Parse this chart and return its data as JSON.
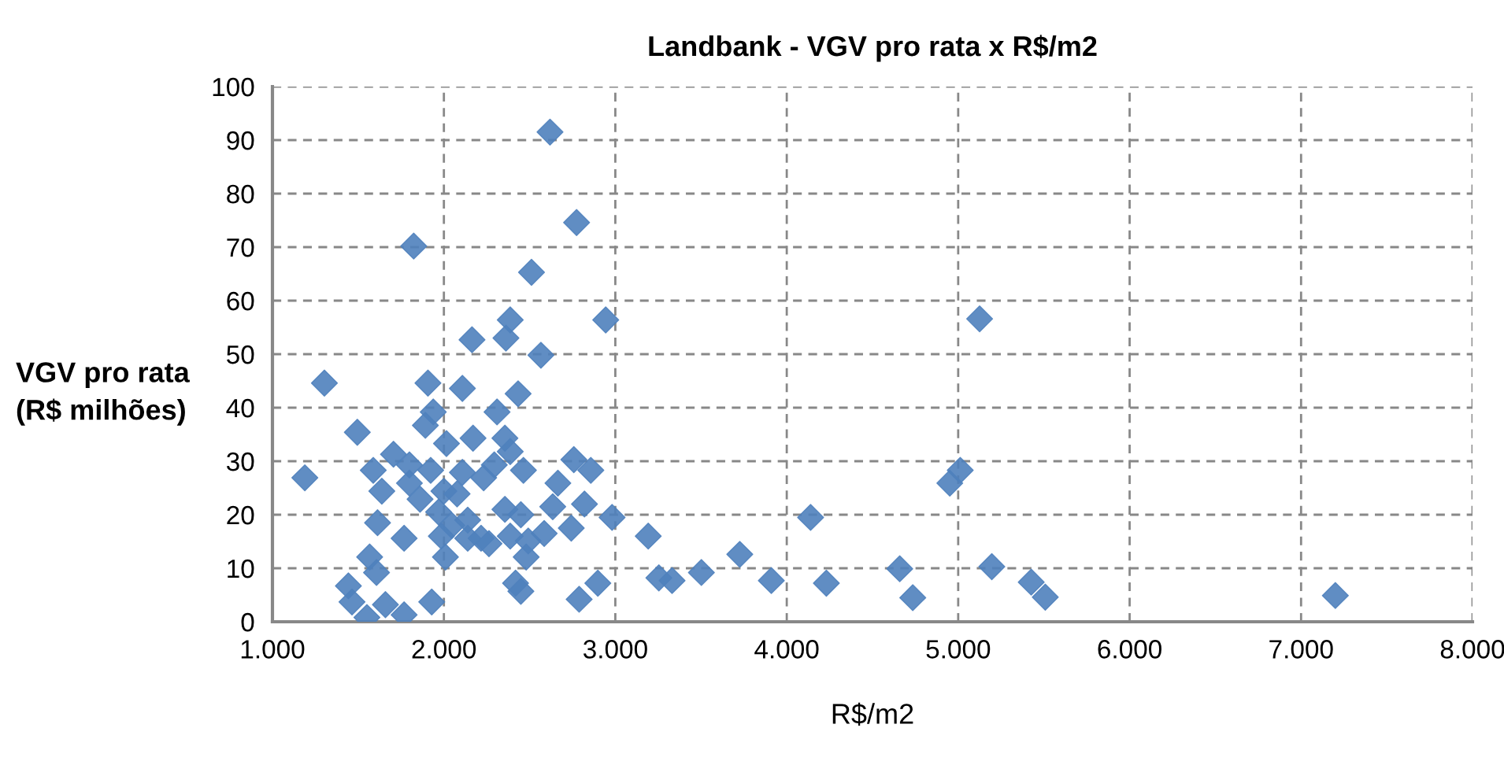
{
  "chart_data": {
    "type": "scatter",
    "title": "Landbank - VGV pro rata x R$/m2",
    "xlabel": "R$/m2",
    "ylabel": "VGV pro rata\n(R$ milhões)",
    "x": [
      1189,
      1303,
      1495,
      1588,
      1638,
      1613,
      1567,
      1607,
      1443,
      1464,
      1551,
      1659,
      1768,
      1706,
      1824,
      1907,
      1938,
      1892,
      2015,
      1799,
      1923,
      1799,
      1861,
      2000,
      2108,
      1969,
      2046,
      2139,
      1985,
      1768,
      2009,
      1929,
      2108,
      2164,
      2170,
      2232,
      2310,
      2356,
      2387,
      2294,
      2464,
      2433,
      2387,
      2362,
      2511,
      2619,
      2774,
      2944,
      2566,
      2758,
      2857,
      2665,
      2635,
      2820,
      2356,
      2449,
      2387,
      2217,
      2263,
      2492,
      2585,
      2743,
      2981,
      2480,
      2418,
      2449,
      2789,
      2898,
      2139,
      2077,
      3192,
      3254,
      3331,
      3502,
      3726,
      3910,
      4231,
      4139,
      4659,
      4735,
      4951,
      5012,
      5125,
      5196,
      5426,
      5508,
      7200
    ],
    "series": [
      {
        "color": "#4f81bd",
        "values": [
          26.9,
          44.6,
          35.4,
          28.3,
          24.4,
          18.5,
          12.1,
          9.2,
          6.7,
          3.7,
          0.8,
          3.2,
          1.3,
          31.3,
          70.2,
          44.6,
          39.2,
          36.7,
          33.3,
          29.3,
          28.3,
          25.9,
          22.9,
          24.4,
          27.9,
          20.5,
          18.0,
          19.0,
          16.0,
          15.6,
          12.1,
          3.7,
          43.6,
          52.7,
          34.3,
          26.9,
          39.2,
          34.3,
          31.8,
          29.3,
          28.3,
          42.6,
          56.4,
          53.0,
          65.3,
          91.5,
          74.6,
          56.4,
          49.8,
          30.3,
          28.3,
          25.9,
          21.5,
          22.0,
          21.0,
          20.0,
          16.0,
          15.6,
          14.6,
          15.1,
          16.5,
          17.5,
          19.5,
          12.1,
          7.2,
          5.7,
          4.2,
          7.2,
          15.6,
          23.9,
          16.0,
          8.2,
          7.7,
          9.2,
          12.6,
          7.7,
          7.2,
          19.5,
          9.9,
          4.5,
          25.9,
          28.3,
          56.6,
          10.3,
          7.4,
          4.6,
          4.9
        ]
      }
    ],
    "xlim": [
      1000,
      8000
    ],
    "ylim": [
      0,
      100
    ],
    "xticks": [
      {
        "value": 1000,
        "label": "1.000"
      },
      {
        "value": 2000,
        "label": "2.000"
      },
      {
        "value": 3000,
        "label": "3.000"
      },
      {
        "value": 4000,
        "label": "4.000"
      },
      {
        "value": 5000,
        "label": "5.000"
      },
      {
        "value": 6000,
        "label": "6.000"
      },
      {
        "value": 7000,
        "label": "7.000"
      },
      {
        "value": 8000,
        "label": "8.000"
      }
    ],
    "yticks": [
      0,
      10,
      20,
      30,
      40,
      50,
      60,
      70,
      80,
      90,
      100
    ],
    "grid": true,
    "marker": "diamond"
  }
}
